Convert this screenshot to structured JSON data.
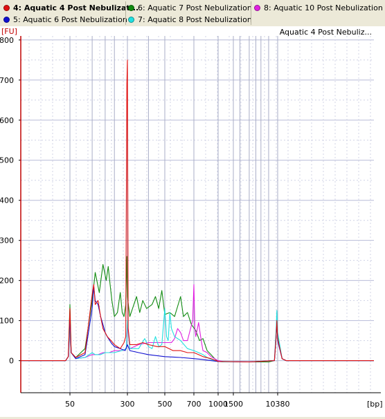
{
  "legend": {
    "items": [
      {
        "label": "4: Aquatic 4 Post Nebulizat...",
        "color": "#e01010",
        "active": true
      },
      {
        "label": "6: Aquatic 7 Post Nebulization",
        "color": "#108a10",
        "active": false
      },
      {
        "label": "8: Aquatic 10 Post Nebulization",
        "color": "#e020e0",
        "active": false
      },
      {
        "label": "5: Aquatic 6 Post Nebulization",
        "color": "#1010d0",
        "active": false
      },
      {
        "label": "7: Aquatic 8 Post Nebulization",
        "color": "#20e0e0",
        "active": false
      }
    ]
  },
  "chart_data": {
    "type": "line",
    "title": "Aquatic 4 Post Nebuliz...",
    "ylabel": "[FU]",
    "xlabel": "[bp]",
    "ylim": [
      -80,
      810
    ],
    "yticks": [
      0,
      100,
      200,
      300,
      400,
      500,
      600,
      700,
      800
    ],
    "xticks": [
      {
        "label": "50",
        "x": 50
      },
      {
        "label": "300",
        "x": 300
      },
      {
        "label": "500",
        "x": 500
      },
      {
        "label": "700",
        "x": 700
      },
      {
        "label": "1000",
        "x": 1000
      },
      {
        "label": "1500",
        "x": 1500
      },
      {
        "label": "10380",
        "x": 10380
      }
    ],
    "ladder_sizes": [
      15,
      50,
      100,
      150,
      200,
      300,
      400,
      500,
      700,
      1000,
      1500,
      2000,
      3000,
      4000,
      5000,
      7000,
      10380
    ],
    "grid": true,
    "series": [
      {
        "name": "6: Aquatic 7 Post Nebulization",
        "color": "#108a10",
        "points": [
          [
            15,
            0
          ],
          [
            45,
            0
          ],
          [
            48,
            10
          ],
          [
            50,
            140
          ],
          [
            52,
            20
          ],
          [
            60,
            8
          ],
          [
            80,
            30
          ],
          [
            100,
            150
          ],
          [
            110,
            220
          ],
          [
            125,
            170
          ],
          [
            140,
            240
          ],
          [
            155,
            200
          ],
          [
            165,
            235
          ],
          [
            175,
            190
          ],
          [
            185,
            150
          ],
          [
            200,
            110
          ],
          [
            220,
            120
          ],
          [
            240,
            170
          ],
          [
            255,
            120
          ],
          [
            270,
            110
          ],
          [
            285,
            140
          ],
          [
            295,
            260
          ],
          [
            300,
            160
          ],
          [
            310,
            110
          ],
          [
            340,
            160
          ],
          [
            355,
            120
          ],
          [
            370,
            150
          ],
          [
            390,
            130
          ],
          [
            420,
            140
          ],
          [
            440,
            160
          ],
          [
            460,
            130
          ],
          [
            480,
            175
          ],
          [
            500,
            115
          ],
          [
            530,
            120
          ],
          [
            560,
            110
          ],
          [
            600,
            160
          ],
          [
            620,
            110
          ],
          [
            650,
            120
          ],
          [
            680,
            90
          ],
          [
            720,
            75
          ],
          [
            760,
            50
          ],
          [
            800,
            55
          ],
          [
            850,
            25
          ],
          [
            900,
            15
          ],
          [
            950,
            5
          ],
          [
            1000,
            -2
          ],
          [
            1200,
            -3
          ],
          [
            3000,
            -3
          ],
          [
            7000,
            -3
          ],
          [
            9000,
            0
          ],
          [
            9700,
            60
          ],
          [
            10000,
            100
          ],
          [
            10380,
            60
          ],
          [
            10700,
            5
          ],
          [
            11000,
            0
          ],
          [
            20000,
            0
          ]
        ]
      },
      {
        "name": "8: Aquatic 10 Post Nebulization",
        "color": "#e020e0",
        "points": [
          [
            15,
            0
          ],
          [
            45,
            0
          ],
          [
            48,
            10
          ],
          [
            50,
            110
          ],
          [
            52,
            20
          ],
          [
            60,
            5
          ],
          [
            80,
            8
          ],
          [
            100,
            15
          ],
          [
            120,
            15
          ],
          [
            140,
            20
          ],
          [
            170,
            20
          ],
          [
            200,
            25
          ],
          [
            250,
            25
          ],
          [
            290,
            30
          ],
          [
            300,
            90
          ],
          [
            310,
            30
          ],
          [
            350,
            40
          ],
          [
            400,
            45
          ],
          [
            450,
            45
          ],
          [
            500,
            45
          ],
          [
            540,
            45
          ],
          [
            560,
            55
          ],
          [
            580,
            80
          ],
          [
            600,
            70
          ],
          [
            620,
            50
          ],
          [
            650,
            50
          ],
          [
            690,
            100
          ],
          [
            700,
            190
          ],
          [
            710,
            80
          ],
          [
            720,
            60
          ],
          [
            750,
            95
          ],
          [
            780,
            50
          ],
          [
            800,
            25
          ],
          [
            850,
            20
          ],
          [
            900,
            10
          ],
          [
            1000,
            0
          ],
          [
            1200,
            -3
          ],
          [
            3000,
            -3
          ],
          [
            9000,
            0
          ],
          [
            9700,
            70
          ],
          [
            10000,
            105
          ],
          [
            10380,
            50
          ],
          [
            10700,
            5
          ],
          [
            11000,
            0
          ],
          [
            20000,
            0
          ]
        ]
      },
      {
        "name": "7: Aquatic 8 Post Nebulization",
        "color": "#20e0e0",
        "points": [
          [
            15,
            0
          ],
          [
            45,
            0
          ],
          [
            48,
            10
          ],
          [
            50,
            90
          ],
          [
            52,
            20
          ],
          [
            60,
            5
          ],
          [
            80,
            8
          ],
          [
            100,
            20
          ],
          [
            110,
            15
          ],
          [
            130,
            15
          ],
          [
            150,
            20
          ],
          [
            200,
            20
          ],
          [
            250,
            25
          ],
          [
            290,
            30
          ],
          [
            300,
            100
          ],
          [
            310,
            30
          ],
          [
            350,
            30
          ],
          [
            380,
            55
          ],
          [
            400,
            35
          ],
          [
            420,
            30
          ],
          [
            440,
            60
          ],
          [
            460,
            35
          ],
          [
            480,
            40
          ],
          [
            500,
            130
          ],
          [
            510,
            60
          ],
          [
            520,
            50
          ],
          [
            530,
            120
          ],
          [
            540,
            80
          ],
          [
            560,
            60
          ],
          [
            600,
            50
          ],
          [
            650,
            30
          ],
          [
            700,
            25
          ],
          [
            750,
            20
          ],
          [
            800,
            15
          ],
          [
            850,
            8
          ],
          [
            900,
            3
          ],
          [
            1000,
            -2
          ],
          [
            1200,
            -3
          ],
          [
            3000,
            -3
          ],
          [
            9000,
            0
          ],
          [
            9700,
            80
          ],
          [
            10000,
            125
          ],
          [
            10380,
            70
          ],
          [
            10700,
            5
          ],
          [
            11000,
            0
          ],
          [
            20000,
            0
          ]
        ]
      },
      {
        "name": "5: Aquatic 6 Post Nebulization",
        "color": "#1010d0",
        "points": [
          [
            15,
            0
          ],
          [
            45,
            0
          ],
          [
            48,
            10
          ],
          [
            50,
            105
          ],
          [
            52,
            20
          ],
          [
            60,
            5
          ],
          [
            80,
            15
          ],
          [
            100,
            130
          ],
          [
            105,
            185
          ],
          [
            110,
            150
          ],
          [
            120,
            140
          ],
          [
            130,
            110
          ],
          [
            140,
            90
          ],
          [
            150,
            70
          ],
          [
            160,
            60
          ],
          [
            180,
            45
          ],
          [
            200,
            35
          ],
          [
            240,
            30
          ],
          [
            280,
            25
          ],
          [
            300,
            40
          ],
          [
            310,
            25
          ],
          [
            350,
            20
          ],
          [
            400,
            15
          ],
          [
            500,
            10
          ],
          [
            600,
            8
          ],
          [
            700,
            5
          ],
          [
            800,
            3
          ],
          [
            900,
            0
          ],
          [
            1000,
            -2
          ],
          [
            3000,
            -3
          ],
          [
            9000,
            0
          ],
          [
            9700,
            60
          ],
          [
            10000,
            95
          ],
          [
            10380,
            50
          ],
          [
            10700,
            5
          ],
          [
            11000,
            0
          ],
          [
            20000,
            0
          ]
        ]
      },
      {
        "name": "4: Aquatic 4 Post Nebulizat...",
        "color": "#e01010",
        "points": [
          [
            15,
            0
          ],
          [
            45,
            0
          ],
          [
            48,
            10
          ],
          [
            50,
            130
          ],
          [
            52,
            20
          ],
          [
            60,
            8
          ],
          [
            80,
            20
          ],
          [
            100,
            165
          ],
          [
            105,
            190
          ],
          [
            110,
            140
          ],
          [
            120,
            150
          ],
          [
            130,
            110
          ],
          [
            140,
            80
          ],
          [
            160,
            60
          ],
          [
            180,
            50
          ],
          [
            200,
            40
          ],
          [
            240,
            30
          ],
          [
            270,
            45
          ],
          [
            285,
            60
          ],
          [
            295,
            690
          ],
          [
            300,
            750
          ],
          [
            303,
            80
          ],
          [
            310,
            40
          ],
          [
            340,
            40
          ],
          [
            370,
            45
          ],
          [
            400,
            40
          ],
          [
            450,
            35
          ],
          [
            500,
            35
          ],
          [
            550,
            25
          ],
          [
            600,
            25
          ],
          [
            650,
            20
          ],
          [
            700,
            20
          ],
          [
            750,
            15
          ],
          [
            800,
            10
          ],
          [
            900,
            5
          ],
          [
            1000,
            -2
          ],
          [
            3000,
            -3
          ],
          [
            9000,
            0
          ],
          [
            9700,
            60
          ],
          [
            10000,
            100
          ],
          [
            10380,
            55
          ],
          [
            10700,
            5
          ],
          [
            11000,
            0
          ],
          [
            20000,
            0
          ]
        ]
      }
    ]
  }
}
